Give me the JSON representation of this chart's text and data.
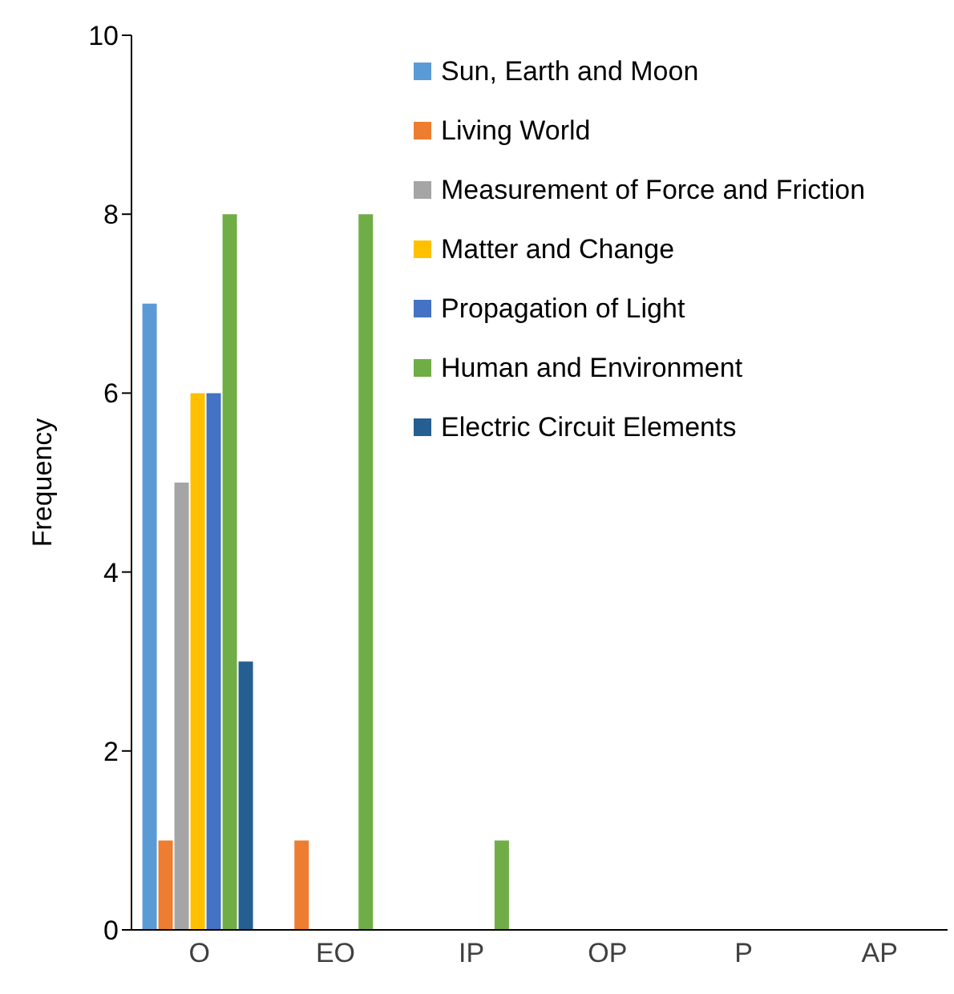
{
  "chart_data": {
    "type": "bar",
    "ylabel": "Frequency",
    "categories": [
      "O",
      "EO",
      "IP",
      "OP",
      "P",
      "AP"
    ],
    "series": [
      {
        "name": "Sun, Earth and Moon",
        "color": "#5b9bd5",
        "values": [
          7,
          0,
          0,
          0,
          0,
          0
        ]
      },
      {
        "name": "Living World",
        "color": "#ed7d31",
        "values": [
          1,
          1,
          0,
          0,
          0,
          0
        ]
      },
      {
        "name": "Measurement of Force and Friction",
        "color": "#a5a5a5",
        "values": [
          5,
          0,
          0,
          0,
          0,
          0
        ]
      },
      {
        "name": "Matter and Change",
        "color": "#ffc000",
        "values": [
          6,
          0,
          0,
          0,
          0,
          0
        ]
      },
      {
        "name": "Propagation of Light",
        "color": "#4472c4",
        "values": [
          6,
          0,
          0,
          0,
          0,
          0
        ]
      },
      {
        "name": "Human and Environment",
        "color": "#70ad47",
        "values": [
          8,
          8,
          1,
          0,
          0,
          0
        ]
      },
      {
        "name": "Electric Circuit Elements",
        "color": "#255e91",
        "values": [
          3,
          0,
          0,
          0,
          0,
          0
        ]
      }
    ],
    "ylim": [
      0,
      10
    ],
    "yticks": [
      0,
      2,
      4,
      6,
      8,
      10
    ],
    "grid": false,
    "legend": "top right"
  }
}
